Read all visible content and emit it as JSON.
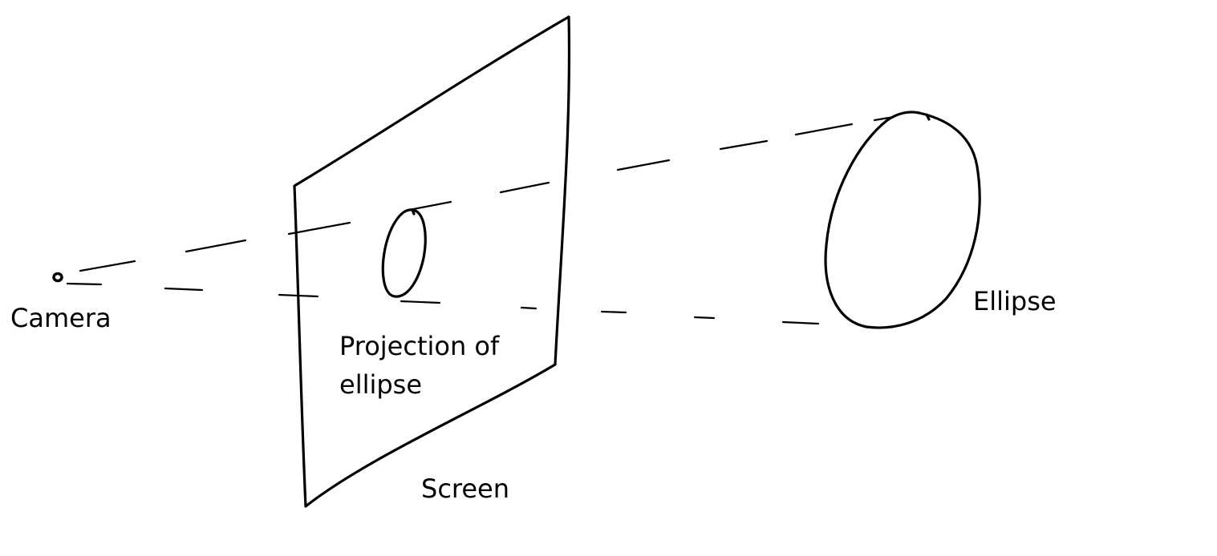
{
  "labels": {
    "camera": "Camera",
    "projection_line1": "Projection of",
    "projection_line2": "ellipse",
    "screen": "Screen",
    "ellipse": "Ellipse"
  },
  "colors": {
    "ink": "#000000",
    "background": "#ffffff"
  }
}
